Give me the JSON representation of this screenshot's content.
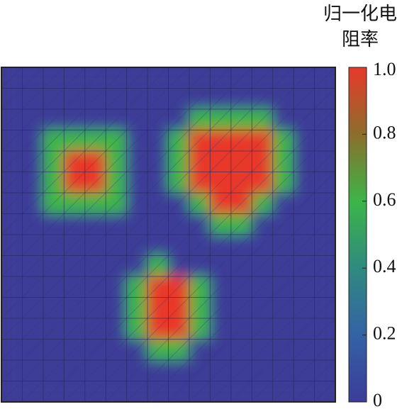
{
  "chart_data": {
    "type": "heatmap",
    "colorbar_label": "归一化电阻率",
    "values": [
      [
        0,
        0,
        0,
        0,
        0,
        0,
        0,
        0,
        0,
        0,
        0,
        0,
        0,
        0,
        0,
        0
      ],
      [
        0,
        0,
        0,
        0,
        0,
        0,
        0,
        0,
        0,
        0,
        0,
        0,
        0,
        0,
        0,
        0
      ],
      [
        0,
        0,
        0,
        0,
        0,
        0,
        0,
        0,
        0,
        0.6,
        0.6,
        0.6,
        0.6,
        0,
        0,
        0
      ],
      [
        0,
        0,
        0.6,
        0.6,
        0.6,
        0.6,
        0,
        0,
        0.6,
        1,
        1,
        1,
        1,
        0.6,
        0,
        0
      ],
      [
        0,
        0,
        0.6,
        1,
        1,
        0.6,
        0,
        0,
        0.6,
        1,
        1,
        1,
        1,
        0.6,
        0,
        0
      ],
      [
        0,
        0,
        0.6,
        1,
        1,
        0.6,
        0,
        0,
        0.6,
        1,
        1,
        1,
        1,
        0.6,
        0,
        0
      ],
      [
        0,
        0,
        0.6,
        0.6,
        0.6,
        0.6,
        0,
        0,
        0,
        0.6,
        1,
        1,
        0.6,
        0,
        0,
        0
      ],
      [
        0,
        0,
        0,
        0,
        0,
        0,
        0,
        0,
        0,
        0,
        0.6,
        0.6,
        0,
        0,
        0,
        0
      ],
      [
        0,
        0,
        0,
        0,
        0,
        0,
        0,
        0,
        0,
        0,
        0,
        0,
        0,
        0,
        0,
        0
      ],
      [
        0,
        0,
        0,
        0,
        0,
        0,
        0,
        0.6,
        0,
        0,
        0,
        0,
        0,
        0,
        0,
        0
      ],
      [
        0,
        0,
        0,
        0,
        0,
        0,
        0.6,
        1,
        1,
        0.6,
        0,
        0,
        0,
        0,
        0,
        0
      ],
      [
        0,
        0,
        0,
        0,
        0,
        0,
        0.6,
        1,
        1,
        0.6,
        0,
        0,
        0,
        0,
        0,
        0
      ],
      [
        0,
        0,
        0,
        0,
        0,
        0,
        0.6,
        1,
        1,
        0.6,
        0,
        0,
        0,
        0,
        0,
        0
      ],
      [
        0,
        0,
        0,
        0,
        0,
        0,
        0,
        0.6,
        0.6,
        0,
        0,
        0,
        0,
        0,
        0,
        0
      ],
      [
        0,
        0,
        0,
        0,
        0,
        0,
        0,
        0,
        0,
        0,
        0,
        0,
        0,
        0,
        0,
        0
      ],
      [
        0,
        0,
        0,
        0,
        0,
        0,
        0,
        0,
        0,
        0,
        0,
        0,
        0,
        0,
        0,
        0
      ]
    ],
    "zlim": [
      0,
      1
    ],
    "zticks": [
      0,
      0.2,
      0.4,
      0.6,
      0.8,
      {
        "value": 1,
        "label": "1.0"
      }
    ],
    "colormap": [
      {
        "value": 0,
        "color": "#3c3c98"
      },
      {
        "value": 0.2,
        "color": "#3462a6"
      },
      {
        "value": 0.4,
        "color": "#2f8a80"
      },
      {
        "value": 0.6,
        "color": "#3cb548"
      },
      {
        "value": 0.8,
        "color": "#8c6e2c"
      },
      {
        "value": 1,
        "color": "#e8392a"
      }
    ]
  }
}
